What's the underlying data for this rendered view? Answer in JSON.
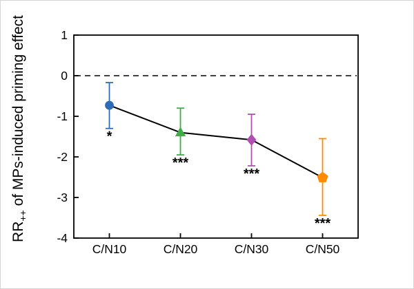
{
  "figure": {
    "background": "#ffffff",
    "axis_color": "#000000",
    "text_color": "#000000"
  },
  "chart_data": {
    "type": "line",
    "title": "",
    "categories": [
      "C/N10",
      "C/N20",
      "C/N30",
      "C/N50"
    ],
    "series": [
      {
        "name": "MPs-induced priming effect",
        "values": [
          -0.73,
          -1.4,
          -1.58,
          -2.51
        ],
        "ci_upper": [
          -0.17,
          -0.8,
          -0.95,
          -1.55
        ],
        "ci_lower": [
          -1.3,
          -1.95,
          -2.22,
          -3.44
        ],
        "marker_shapes": [
          "circle",
          "triangle-up",
          "diamond",
          "pentagon"
        ],
        "marker_colors": [
          "#2e6db6",
          "#3fae4a",
          "#b04fb1",
          "#ff8a00"
        ],
        "line_color": "#000000"
      }
    ],
    "significance_labels": [
      "*",
      "***",
      "***",
      "***"
    ],
    "ylabel": {
      "main": "RR",
      "sub": "++",
      "rest": " of MPs-induced priming effect"
    },
    "xlabel": "",
    "ylim": [
      -4,
      1
    ],
    "yticks": [
      1,
      0,
      -1,
      -2,
      -3,
      -4
    ],
    "ytick_labels": [
      "1",
      "0",
      "-1",
      "-2",
      "-3",
      "-4"
    ],
    "zero_line": {
      "value": 0,
      "style": "dashed",
      "color": "#000000"
    },
    "grid": false,
    "legend_position": "none",
    "frame": true
  }
}
